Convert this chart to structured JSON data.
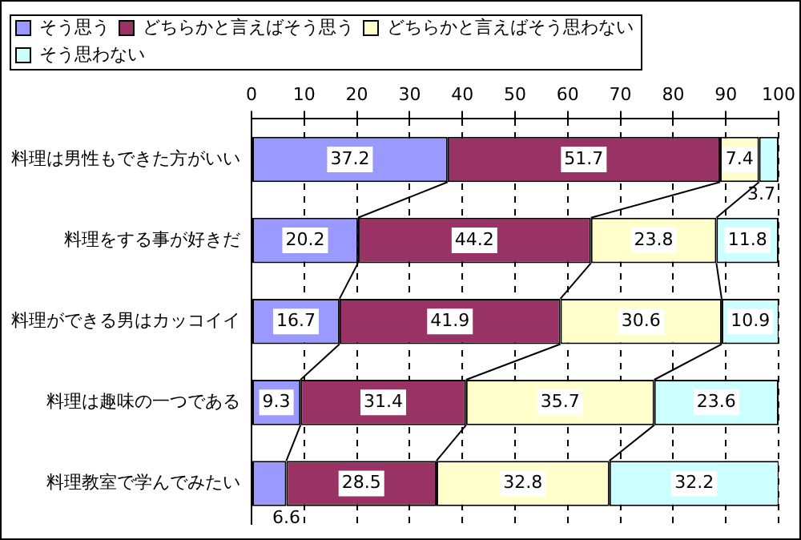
{
  "chart_data": {
    "type": "bar",
    "orientation": "horizontal",
    "stacked": true,
    "data_labels": true,
    "grid": "x",
    "legend": "top",
    "categories": [
      "料理は男性もできた方がいい",
      "料理をする事が好きだ",
      "料理ができる男はカッコイイ",
      "料理は趣味の一つである",
      "料理教室で学んでみたい"
    ],
    "xlim": [
      0,
      100
    ],
    "xticks": [
      0,
      10,
      20,
      30,
      40,
      50,
      60,
      70,
      80,
      90,
      100
    ],
    "series": [
      {
        "name": "そう思う",
        "color": "#9999ff",
        "values": [
          37.2,
          20.2,
          16.7,
          9.3,
          6.6
        ]
      },
      {
        "name": "どちらかと言えばそう思う",
        "color": "#993366",
        "values": [
          51.7,
          44.2,
          41.9,
          31.4,
          28.5
        ]
      },
      {
        "name": "どちらかと言えばそう思わない",
        "color": "#ffffcc",
        "values": [
          7.4,
          23.8,
          30.6,
          35.7,
          32.8
        ]
      },
      {
        "name": "そう思わない",
        "color": "#ccffff",
        "values": [
          3.7,
          11.8,
          10.9,
          23.6,
          32.2
        ]
      }
    ]
  }
}
